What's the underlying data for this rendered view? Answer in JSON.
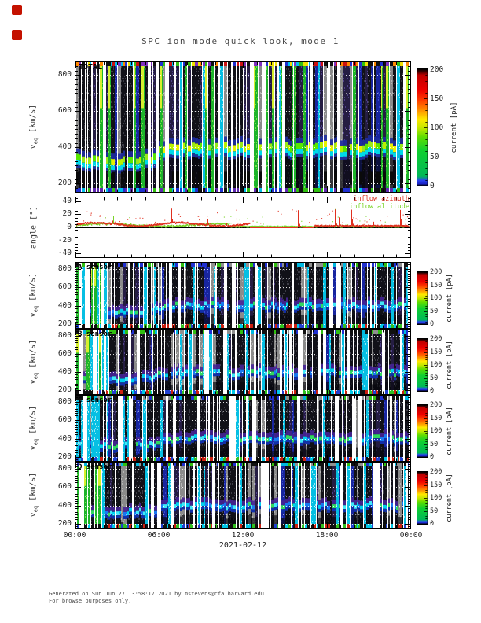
{
  "page": {
    "title": "SPC ion mode quick look, mode 1"
  },
  "vlabel": {
    "base": "v",
    "sub": "eq",
    "unit": " [km/s]"
  },
  "angle_panel": {
    "ylabel": "angle [°]",
    "legend": [
      {
        "label": "inflow azimuth",
        "color": "#e03020"
      },
      {
        "label": "inflow altitude",
        "color": "#7ad428"
      }
    ]
  },
  "panels": {
    "total": {
      "label": "TOTAL"
    },
    "A": {
      "label": "A sensor"
    },
    "B": {
      "label": "B sensor"
    },
    "C": {
      "label": "C sensor"
    },
    "D": {
      "label": "D sensor"
    }
  },
  "colorbar": {
    "label": "current [pA]"
  },
  "axes": {
    "heatmap_yticks": [
      {
        "v": 800,
        "label": "800"
      },
      {
        "v": 600,
        "label": "600"
      },
      {
        "v": 400,
        "label": "400"
      },
      {
        "v": 200,
        "label": "200"
      }
    ],
    "angle_yticks": [
      {
        "v": 40,
        "label": "40"
      },
      {
        "v": 20,
        "label": "20"
      },
      {
        "v": 0,
        "label": "0"
      },
      {
        "v": -20,
        "label": "-20"
      },
      {
        "v": -40,
        "label": "-40"
      }
    ],
    "x_ticks": [
      {
        "h": 0,
        "label": "00:00"
      },
      {
        "h": 6,
        "label": "06:00"
      },
      {
        "h": 12,
        "label": "12:00"
      },
      {
        "h": 18,
        "label": "18:00"
      },
      {
        "h": 24,
        "label": "00:00"
      }
    ],
    "colorbar_ticks": [
      {
        "v": 200,
        "label": "200"
      },
      {
        "v": 150,
        "label": "150"
      },
      {
        "v": 100,
        "label": "100"
      },
      {
        "v": 50,
        "label": "50"
      },
      {
        "v": 0,
        "label": "0"
      }
    ],
    "date": "2021-02-12"
  },
  "footer": {
    "line1": "Generated on Sun Jun 27 13:58:17 2021 by mstevens@cfa.harvard.edu",
    "line2": "For browse purposes only."
  },
  "palette": {
    "marker_red": "#c41200",
    "colorbar_stops": [
      [
        0,
        "#000000"
      ],
      [
        0.015,
        "#1a22c8"
      ],
      [
        0.045,
        "#2a44f0"
      ],
      [
        0.08,
        "#00b858"
      ],
      [
        0.3,
        "#10d030"
      ],
      [
        0.42,
        "#60dd00"
      ],
      [
        0.5,
        "#c8e800"
      ],
      [
        0.57,
        "#ffe800"
      ],
      [
        0.64,
        "#ff9800"
      ],
      [
        0.73,
        "#ff4000"
      ],
      [
        0.82,
        "#ee0000"
      ],
      [
        0.95,
        "#c00000"
      ],
      [
        0.975,
        "#500000"
      ],
      [
        1,
        "#000000"
      ]
    ],
    "total_top_strip": [
      "#ff8800",
      "#00c0f0",
      "#2030d0",
      "#cc1010",
      "#30c010",
      "#8030c0",
      "#101010",
      "#f0e000"
    ],
    "total_bottom_strip": [
      "#2030d0",
      "#30c010",
      "#6028b0",
      "#101010",
      "#00c0e8"
    ],
    "sensor_top_strip": [
      "#101010",
      "#101010",
      "#101010",
      "#30c010",
      "#00b8e0",
      "#2030d0",
      "#909090"
    ],
    "sensor_bottom_strip": [
      "#101010",
      "#00c8e8",
      "#2040d0",
      "#cc2010",
      "#30c020",
      "#101010"
    ],
    "band_core_total": [
      "#e8f000",
      "#58e800",
      "#98e818",
      "#b8f000"
    ],
    "band_core_sensor": [
      "#1878f0",
      "#00d0f0",
      "#40e8f8",
      "#30d860"
    ]
  },
  "render": {
    "seeds": {
      "total": 11,
      "A": 21,
      "B": 31,
      "C": 41,
      "D": 51,
      "angle": 7
    }
  },
  "chart_data": [
    {
      "id": "total",
      "type": "heatmap",
      "title": "TOTAL",
      "x_ticks": [
        "00:00",
        "06:00",
        "12:00",
        "18:00",
        "00:00"
      ],
      "x_date": "2021-02-12",
      "ylabel": "v_eq [km/s]",
      "y_ticks": [
        200,
        400,
        600,
        800
      ],
      "y_range": [
        150,
        875
      ],
      "color_scale": {
        "label": "current [pA]",
        "range": [
          0,
          200
        ],
        "ticks": [
          0,
          50,
          100,
          150,
          200
        ],
        "colormap": "rainbow: black-blue-green-yellow-orange-red-black"
      },
      "proton_core_speed_kms_by_hour": [
        330,
        328,
        332,
        335,
        330,
        345,
        390,
        400,
        405,
        402,
        400,
        405,
        408,
        405,
        402,
        408,
        412,
        418,
        415,
        410,
        406,
        410,
        414,
        410,
        405
      ],
      "notes": "dense vertical striping with frequent white data gaps; bright green-yellow band at proton core speed; colorful saturated pixels along top and bottom edges; dotted white horizontal gridlines"
    },
    {
      "id": "angles",
      "type": "line",
      "ylabel": "angle [°]",
      "y_ticks": [
        -40,
        -20,
        0,
        20,
        40
      ],
      "y_range": [
        -47,
        47
      ],
      "legend_position": "top-right",
      "series": [
        {
          "name": "inflow azimuth",
          "color": "#e03020",
          "hourly_mean_deg": [
            8,
            10,
            7,
            12,
            9,
            11,
            9,
            10,
            12,
            9,
            6,
            5,
            3,
            -2,
            -3,
            -3,
            -2,
            4,
            8,
            3,
            2,
            2,
            3,
            9,
            5
          ],
          "notes": "spiky trace, mostly 0-12 deg with narrow spikes to ~30 deg; dips slightly below 0 between ~13:00 and ~17:00"
        },
        {
          "name": "inflow altitude",
          "color": "#7ad428",
          "hourly_mean_deg": [
            5,
            8,
            5,
            9,
            7,
            8,
            6,
            6,
            7,
            5,
            4,
            3,
            2,
            1,
            1,
            1,
            1,
            3,
            10,
            2,
            1,
            1,
            2,
            4,
            2
          ],
          "notes": "spiky trace near 0-8 deg with occasional spikes to ~25-30 deg (large spike near 18:30)"
        }
      ]
    },
    {
      "id": "A",
      "type": "heatmap",
      "title": "A sensor",
      "ylabel": "v_eq [km/s]",
      "y_ticks": [
        200,
        400,
        600,
        800
      ],
      "y_range": [
        150,
        875
      ],
      "color_scale": {
        "label": "current [pA]",
        "range": [
          0,
          200
        ],
        "ticks": [
          0,
          50,
          100,
          150,
          200
        ]
      },
      "proton_core_speed_kms_by_hour": [
        325,
        325,
        330,
        332,
        330,
        342,
        388,
        398,
        402,
        400,
        398,
        402,
        406,
        402,
        400,
        406,
        410,
        415,
        412,
        408,
        404,
        408,
        412,
        408,
        403
      ],
      "notes": "mostly dark columns with cyan-blue core band; bright green/cyan columns in first ~2 hours"
    },
    {
      "id": "B",
      "type": "heatmap",
      "title": "B sensor",
      "ylabel": "v_eq [km/s]",
      "y_ticks": [
        200,
        400,
        600,
        800
      ],
      "y_range": [
        150,
        875
      ],
      "color_scale": {
        "label": "current [pA]",
        "range": [
          0,
          200
        ],
        "ticks": [
          0,
          50,
          100,
          150,
          200
        ]
      },
      "proton_core_speed_kms_by_hour": [
        325,
        325,
        330,
        332,
        330,
        342,
        388,
        398,
        402,
        400,
        398,
        402,
        406,
        402,
        400,
        406,
        410,
        415,
        412,
        408,
        404,
        408,
        412,
        408,
        403
      ],
      "notes": "same structure as A sensor"
    },
    {
      "id": "C",
      "type": "heatmap",
      "title": "C sensor",
      "ylabel": "v_eq [km/s]",
      "y_ticks": [
        200,
        400,
        600,
        800
      ],
      "y_range": [
        150,
        875
      ],
      "color_scale": {
        "label": "current [pA]",
        "range": [
          0,
          200
        ],
        "ticks": [
          0,
          50,
          100,
          150,
          200
        ]
      },
      "proton_core_speed_kms_by_hour": [
        325,
        325,
        330,
        332,
        330,
        342,
        388,
        398,
        402,
        400,
        398,
        402,
        406,
        402,
        400,
        406,
        410,
        415,
        412,
        408,
        404,
        408,
        412,
        408,
        403
      ],
      "notes": "same structure as A sensor"
    },
    {
      "id": "D",
      "type": "heatmap",
      "title": "D sensor",
      "ylabel": "v_eq [km/s]",
      "y_ticks": [
        200,
        400,
        600,
        800
      ],
      "y_range": [
        150,
        875
      ],
      "color_scale": {
        "label": "current [pA]",
        "range": [
          0,
          200
        ],
        "ticks": [
          0,
          50,
          100,
          150,
          200
        ]
      },
      "proton_core_speed_kms_by_hour": [
        325,
        325,
        330,
        332,
        330,
        342,
        388,
        398,
        402,
        400,
        398,
        402,
        406,
        402,
        400,
        406,
        410,
        415,
        412,
        408,
        404,
        408,
        412,
        408,
        403
      ],
      "notes": "same structure as A sensor"
    }
  ]
}
